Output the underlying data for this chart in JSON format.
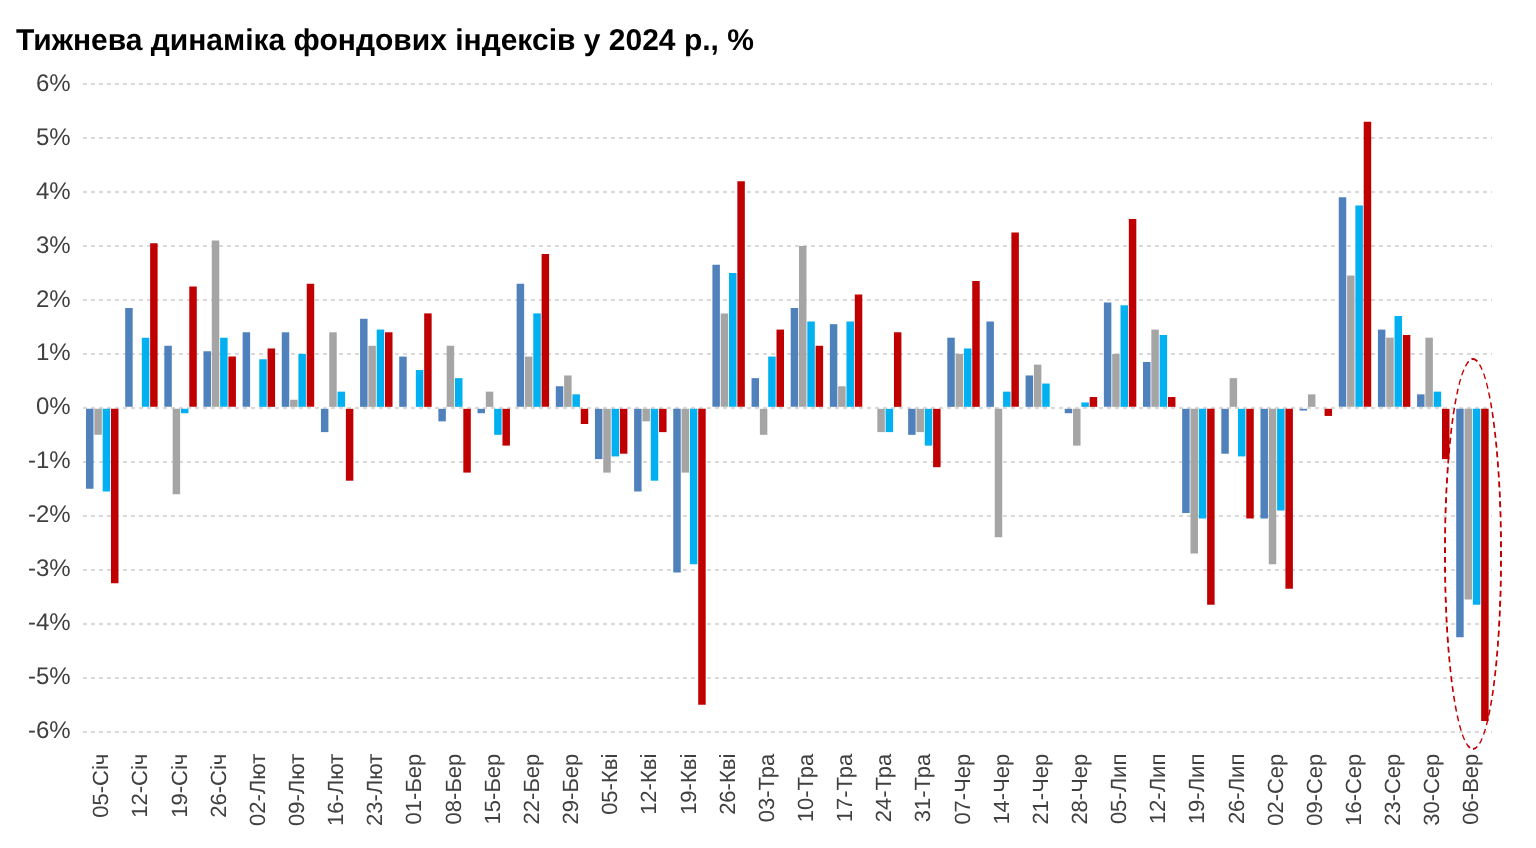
{
  "chart_data": {
    "type": "bar",
    "title": "Тижнева динаміка фондових індексів у 2024 р., %",
    "categories": [
      "05-Січ",
      "12-Січ",
      "19-Січ",
      "26-Січ",
      "02-Лют",
      "09-Лют",
      "16-Лют",
      "23-Лют",
      "01-Бер",
      "08-Бер",
      "15-Бер",
      "22-Бер",
      "29-Бер",
      "05-Кві",
      "12-Кві",
      "19-Кві",
      "26-Кві",
      "03-Тра",
      "10-Тра",
      "17-Тра",
      "24-Тра",
      "31-Тра",
      "07-Чер",
      "14-Чер",
      "21-Чер",
      "28-Чер",
      "05-Лип",
      "12-Лип",
      "19-Лип",
      "26-Лип",
      "02-Сер",
      "09-Сер",
      "16-Сер",
      "23-Сер",
      "30-Сер",
      "06-Вер"
    ],
    "series": [
      {
        "color": "#4f81bd",
        "values": [
          -1.5,
          1.85,
          1.15,
          1.05,
          1.4,
          1.4,
          -0.45,
          1.65,
          0.95,
          -0.25,
          -0.1,
          2.3,
          0.4,
          -0.95,
          -1.55,
          -3.05,
          2.65,
          0.55,
          1.85,
          1.55,
          0,
          -0.5,
          1.3,
          1.6,
          0.6,
          -0.1,
          1.95,
          0.85,
          -1.95,
          -0.85,
          -2.05,
          -0.05,
          3.9,
          1.45,
          0.25,
          -4.25
        ]
      },
      {
        "color": "#a5a5a5",
        "values": [
          -0.5,
          0,
          -1.6,
          3.1,
          0,
          0.15,
          1.4,
          1.15,
          0,
          1.15,
          0.3,
          0.95,
          0.6,
          -1.2,
          -0.25,
          -1.2,
          1.75,
          -0.5,
          3.0,
          0.4,
          -0.45,
          -0.45,
          1.0,
          -2.4,
          0.8,
          -0.7,
          1.0,
          1.45,
          -2.7,
          0.55,
          -2.9,
          0.25,
          2.45,
          1.3,
          1.3,
          -3.55
        ]
      },
      {
        "color": "#00b0f0",
        "values": [
          -1.55,
          1.3,
          -0.1,
          1.3,
          0.9,
          1.0,
          0.3,
          1.45,
          0.7,
          0.55,
          -0.5,
          1.75,
          0.25,
          -0.9,
          -1.35,
          -2.9,
          2.5,
          0.95,
          1.6,
          1.6,
          -0.45,
          -0.7,
          1.1,
          0.3,
          0.45,
          0.1,
          1.9,
          1.35,
          -2.05,
          -0.9,
          -1.9,
          0,
          3.75,
          1.7,
          0.3,
          -3.65
        ]
      },
      {
        "color": "#c00000",
        "values": [
          -3.25,
          3.05,
          2.25,
          0.95,
          1.1,
          2.3,
          -1.35,
          1.4,
          1.75,
          -1.2,
          -0.7,
          2.85,
          -0.3,
          -0.85,
          -0.45,
          -5.5,
          4.2,
          1.45,
          1.15,
          2.1,
          1.4,
          -1.1,
          2.35,
          3.25,
          0,
          0.2,
          3.5,
          0.2,
          -3.65,
          -2.05,
          -3.35,
          -0.15,
          5.3,
          1.35,
          -0.95,
          -5.8
        ]
      }
    ],
    "ylim": [
      -6,
      6
    ],
    "yticks": [
      {
        "value": -6,
        "label": "-6%"
      },
      {
        "value": -5,
        "label": "-5%"
      },
      {
        "value": -4,
        "label": "-4%"
      },
      {
        "value": -3,
        "label": "-3%"
      },
      {
        "value": -2,
        "label": "-2%"
      },
      {
        "value": -1,
        "label": "-1%"
      },
      {
        "value": 0,
        "label": "0%"
      },
      {
        "value": 1,
        "label": "1%"
      },
      {
        "value": 2,
        "label": "2%"
      },
      {
        "value": 3,
        "label": "3%"
      },
      {
        "value": 4,
        "label": "4%"
      },
      {
        "value": 5,
        "label": "5%"
      },
      {
        "value": 6,
        "label": "6%"
      }
    ],
    "grid": "y",
    "legend": false
  }
}
